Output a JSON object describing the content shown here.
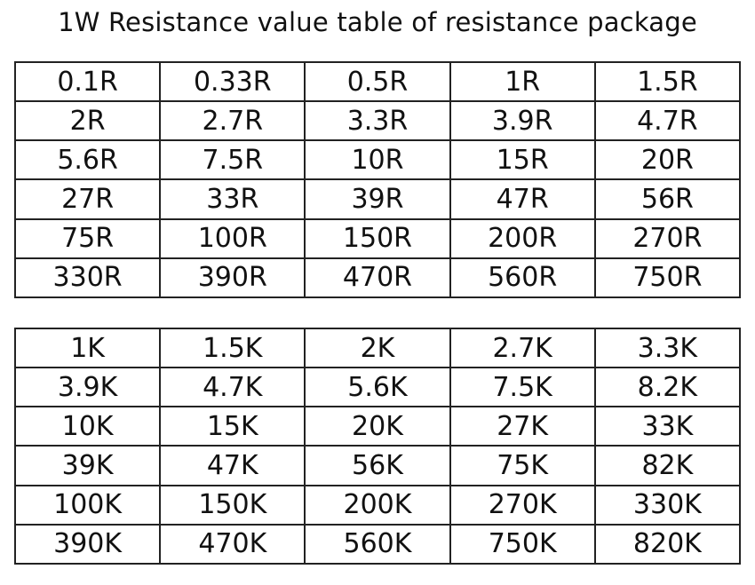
{
  "title": "1W Resistance value table of resistance package",
  "tables": [
    {
      "rows": [
        [
          "0.1R",
          "0.33R",
          "0.5R",
          "1R",
          "1.5R"
        ],
        [
          "2R",
          "2.7R",
          "3.3R",
          "3.9R",
          "4.7R"
        ],
        [
          "5.6R",
          "7.5R",
          "10R",
          "15R",
          "20R"
        ],
        [
          "27R",
          "33R",
          "39R",
          "47R",
          "56R"
        ],
        [
          "75R",
          "100R",
          "150R",
          "200R",
          "270R"
        ],
        [
          "330R",
          "390R",
          "470R",
          "560R",
          "750R"
        ]
      ]
    },
    {
      "rows": [
        [
          "1K",
          "1.5K",
          "2K",
          "2.7K",
          "3.3K"
        ],
        [
          "3.9K",
          "4.7K",
          "5.6K",
          "7.5K",
          "8.2K"
        ],
        [
          "10K",
          "15K",
          "20K",
          "27K",
          "33K"
        ],
        [
          "39K",
          "47K",
          "56K",
          "75K",
          "82K"
        ],
        [
          "100K",
          "150K",
          "200K",
          "270K",
          "330K"
        ],
        [
          "390K",
          "470K",
          "560K",
          "750K",
          "820K"
        ]
      ]
    }
  ]
}
